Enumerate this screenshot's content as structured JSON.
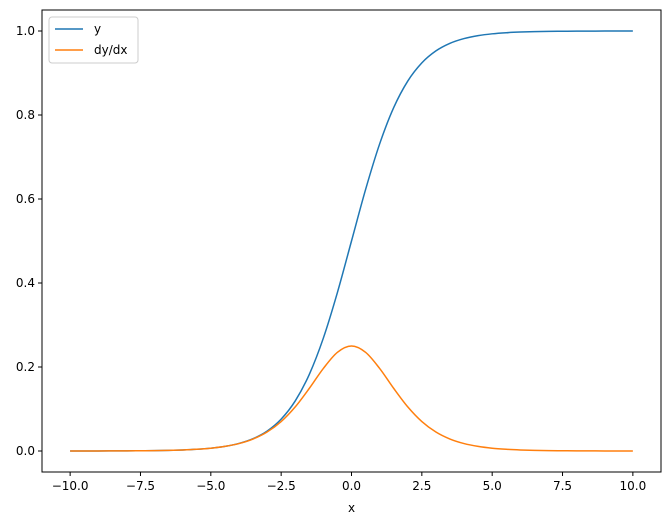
{
  "chart_data": {
    "type": "line",
    "title": "",
    "xlabel": "x",
    "ylabel": "",
    "xlim": [
      -11,
      11
    ],
    "ylim": [
      -0.05,
      1.05
    ],
    "grid": false,
    "legend": "top-left",
    "xticks": [
      "−10.0",
      "−7.5",
      "−5.0",
      "−2.5",
      "0.0",
      "2.5",
      "5.0",
      "7.5",
      "10.0"
    ],
    "xtick_values": [
      -10,
      -7.5,
      -5,
      -2.5,
      0,
      2.5,
      5,
      7.5,
      10
    ],
    "yticks": [
      "0.0",
      "0.2",
      "0.4",
      "0.6",
      "0.8",
      "1.0"
    ],
    "ytick_values": [
      0,
      0.2,
      0.4,
      0.6,
      0.8,
      1.0
    ],
    "x": [
      -10,
      -9.5,
      -9,
      -8.5,
      -8,
      -7.5,
      -7,
      -6.5,
      -6,
      -5.5,
      -5,
      -4.5,
      -4,
      -3.5,
      -3,
      -2.5,
      -2,
      -1.5,
      -1,
      -0.5,
      0,
      0.5,
      1,
      1.5,
      2,
      2.5,
      3,
      3.5,
      4,
      4.5,
      5,
      5.5,
      6,
      6.5,
      7,
      7.5,
      8,
      8.5,
      9,
      9.5,
      10
    ],
    "series": [
      {
        "name": "y",
        "color": "#1f77b4",
        "values": [
          0.0,
          0.0001,
          0.0001,
          0.0002,
          0.0003,
          0.0006,
          0.0009,
          0.0015,
          0.0025,
          0.0041,
          0.0067,
          0.011,
          0.018,
          0.0293,
          0.0474,
          0.0759,
          0.1192,
          0.1824,
          0.2689,
          0.3775,
          0.5,
          0.6225,
          0.7311,
          0.8176,
          0.8808,
          0.9241,
          0.9526,
          0.9707,
          0.982,
          0.989,
          0.9933,
          0.9959,
          0.9975,
          0.9985,
          0.9991,
          0.9994,
          0.9997,
          0.9998,
          0.9999,
          0.9999,
          1.0
        ]
      },
      {
        "name": "dy/dx",
        "color": "#ff7f0e",
        "values": [
          0.0,
          0.0001,
          0.0001,
          0.0002,
          0.0003,
          0.0006,
          0.0009,
          0.0015,
          0.0025,
          0.0041,
          0.0066,
          0.0109,
          0.0177,
          0.0285,
          0.0452,
          0.0701,
          0.105,
          0.1491,
          0.1966,
          0.235,
          0.25,
          0.235,
          0.1966,
          0.1491,
          0.105,
          0.0701,
          0.0452,
          0.0285,
          0.0177,
          0.0109,
          0.0066,
          0.0041,
          0.0025,
          0.0015,
          0.0009,
          0.0006,
          0.0003,
          0.0002,
          0.0001,
          0.0001,
          0.0
        ]
      }
    ]
  }
}
